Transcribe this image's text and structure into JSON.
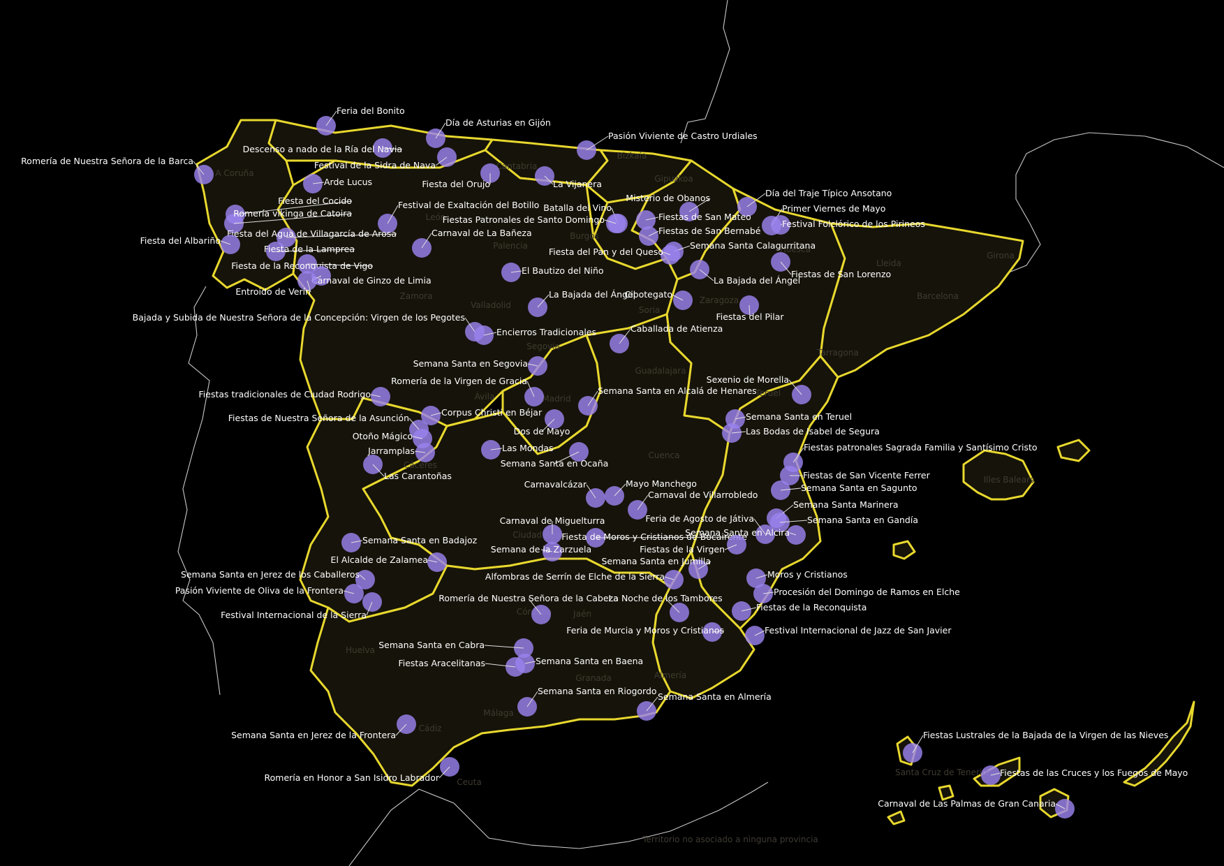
{
  "colors": {
    "background": "#000000",
    "region_border": "#e8d82e",
    "marker": "#9a83ee",
    "label": "#ffffff"
  },
  "province_labels": [
    "A Coruña",
    "Bizkaia",
    "Gipuzkoa",
    "Cantabria",
    "León",
    "Palencia",
    "Burgos",
    "Huesca",
    "Lleida",
    "Girona",
    "Barcelona",
    "Zamora",
    "Valladolid",
    "Zaragoza",
    "Soria",
    "Tarragona",
    "Segovia",
    "Guadalajara",
    "Teruel",
    "Ávila",
    "Madrid",
    "Cáceres",
    "Cuenca",
    "Illes Balears",
    "Ciudad Real",
    "Córdoba",
    "Jaén",
    "Huelva",
    "Granada",
    "Almería",
    "Málaga",
    "Cádiz",
    "Ceuta",
    "Santa Cruz de Tenerife",
    "Territorio no asociado a ninguna provincia"
  ],
  "festivals": [
    "Feria del Bonito",
    "Día de Asturias en Gijón",
    "Descenso a nado de la Ría del Navia",
    "Pasión Viviente de Castro Urdiales",
    "Romería de Nuestra Señora de la Barca",
    "Festival de la Sidra de Nava",
    "Arde Lucus",
    "Fiesta del Orujo",
    "La Vijanera",
    "Día del Traje Típico Ansotano",
    "Fiesta del Cocido",
    "Festival de Exaltación del Botillo",
    "Batalla del Vino",
    "Misterio de Obanos",
    "Primer Viernes de Mayo",
    "Romería vikinga de Catoira",
    "Fiestas Patronales de Santo Domingo",
    "Fiestas de San Mateo",
    "Festival Folclórico de los Pirineos",
    "Fiesta del Agua de Villagarcía de Arosa",
    "Carnaval de La Bañeza",
    "Fiestas de San Bernabé",
    "Fiesta del Albariño",
    "Fiesta de la Lamprea",
    "Semana Santa Calagurritana",
    "Fiesta del Pan y del Queso",
    "Fiesta de la Reconquista de Vigo",
    "El Bautizo del Niño",
    "Fiestas de San Lorenzo",
    "Carnaval de Ginzo de Limia",
    "La Bajada del Ángel",
    "Entroido de Verín",
    "La Bajada del Ángel",
    "Cipotegato",
    "Bajada y Subida de Nuestra Señora de la Concepción: Virgen de los Pegotes",
    "Fiestas del Pilar",
    "Encierros Tradicionales",
    "Caballada de Atienza",
    "Semana Santa en Segovia",
    "Romería de la Virgen de Gracia",
    "Sexenio de Morella",
    "Fiestas tradicionales de Ciudad Rodrigo",
    "Semana Santa en Alcalá de Henares",
    "Corpus Christi en Béjar",
    "Semana Santa en Teruel",
    "Fiestas de Nuestra Señora de la Asunción",
    "Las Bodas de Isabel de Segura",
    "Dos de Mayo",
    "Otoño Mágico",
    "Las Mondas",
    "Jarramplas",
    "Fiestas patronales Sagrada Familia y Santísimo Cristo",
    "Semana Santa en Ocaña",
    "Las Carantoñas",
    "Fiestas de San Vicente Ferrer",
    "Mayo Manchego",
    "Carnavalcázar",
    "Semana Santa en Sagunto",
    "Carnaval de Villarrobledo",
    "Semana Santa Marinera",
    "Feria de Agosto de Játiva",
    "Carnaval de Miguelturra",
    "Semana Santa en Gandía",
    "Semana Santa en Alcira",
    "Fiesta de Moros y Cristianos de Bocairente",
    "Semana Santa en Badajoz",
    "Semana de la Zarzuela",
    "Fiestas de la Virgen",
    "El Alcalde de Zalamea",
    "Semana Santa en Jumilla",
    "Semana Santa en Jerez de los Caballeros",
    "Alfombras de Serrín de Elche de la Sierra",
    "Moros y Cristianos",
    "Pasión Viviente de Oliva de la Frontera",
    "Procesión del Domingo de Ramos en Elche",
    "Romería de Nuestra Señora de la Cabeza",
    "La Noche de los Tambores",
    "Fiestas de la Reconquista",
    "Festival Internacional de la Sierra",
    "Feria de Murcia y Moros y Cristianos",
    "Festival Internacional de Jazz de San Javier",
    "Semana Santa en Cabra",
    "Semana Santa en Baena",
    "Fiestas Aracelitanas",
    "Semana Santa en Riogordo",
    "Semana Santa en Almería",
    "Fiestas Lustrales de la Bajada de la Virgen de las Nieves",
    "Semana Santa en Jerez de la Frontera",
    "Fiestas de las Cruces y los Fuegos de Mayo",
    "Romería en Honor a San Isidro Labrador",
    "Carnaval de Las Palmas de Gran Canaria"
  ]
}
